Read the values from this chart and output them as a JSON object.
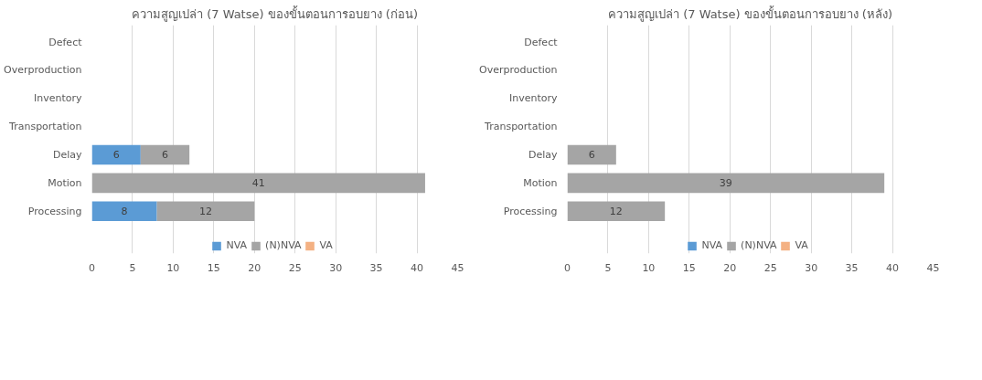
{
  "chart_data": [
    {
      "type": "bar",
      "orientation": "horizontal",
      "stacked": true,
      "title": "ความสูญเปล่า (7 Watse) ของขั้นตอนการอบยาง (ก่อน)",
      "categories": [
        "Defect",
        "Overproduction",
        "Inventory",
        "Transportation",
        "Delay",
        "Motion",
        "Processing"
      ],
      "series": [
        {
          "name": "NVA",
          "color": "#5b9bd5",
          "values": [
            null,
            null,
            null,
            null,
            6,
            null,
            8
          ]
        },
        {
          "name": "(N)NVA",
          "color": "#a5a5a5",
          "values": [
            null,
            null,
            null,
            null,
            6,
            41,
            12
          ]
        },
        {
          "name": "VA",
          "color": "#f4b183",
          "values": [
            null,
            null,
            null,
            null,
            null,
            null,
            null
          ]
        }
      ],
      "xlim": [
        0,
        45
      ],
      "xticks": [
        0,
        5,
        10,
        15,
        20,
        25,
        30,
        35,
        40,
        45
      ],
      "grid": "x",
      "legend": "bottom",
      "data_labels": true
    },
    {
      "type": "bar",
      "orientation": "horizontal",
      "stacked": true,
      "title": "ความสูญเปล่า (7 Watse) ของขั้นตอนการอบยาง (หลัง)",
      "categories": [
        "Defect",
        "Overproduction",
        "Inventory",
        "Transportation",
        "Delay",
        "Motion",
        "Processing"
      ],
      "series": [
        {
          "name": "NVA",
          "color": "#5b9bd5",
          "values": [
            null,
            null,
            null,
            null,
            null,
            null,
            null
          ]
        },
        {
          "name": "(N)NVA",
          "color": "#a5a5a5",
          "values": [
            null,
            null,
            null,
            null,
            6,
            39,
            12
          ]
        },
        {
          "name": "VA",
          "color": "#f4b183",
          "values": [
            null,
            null,
            null,
            null,
            null,
            null,
            null
          ]
        }
      ],
      "xlim": [
        0,
        45
      ],
      "xticks": [
        0,
        5,
        10,
        15,
        20,
        25,
        30,
        35,
        40,
        45
      ],
      "grid": "x",
      "legend": "bottom",
      "data_labels": true
    }
  ]
}
